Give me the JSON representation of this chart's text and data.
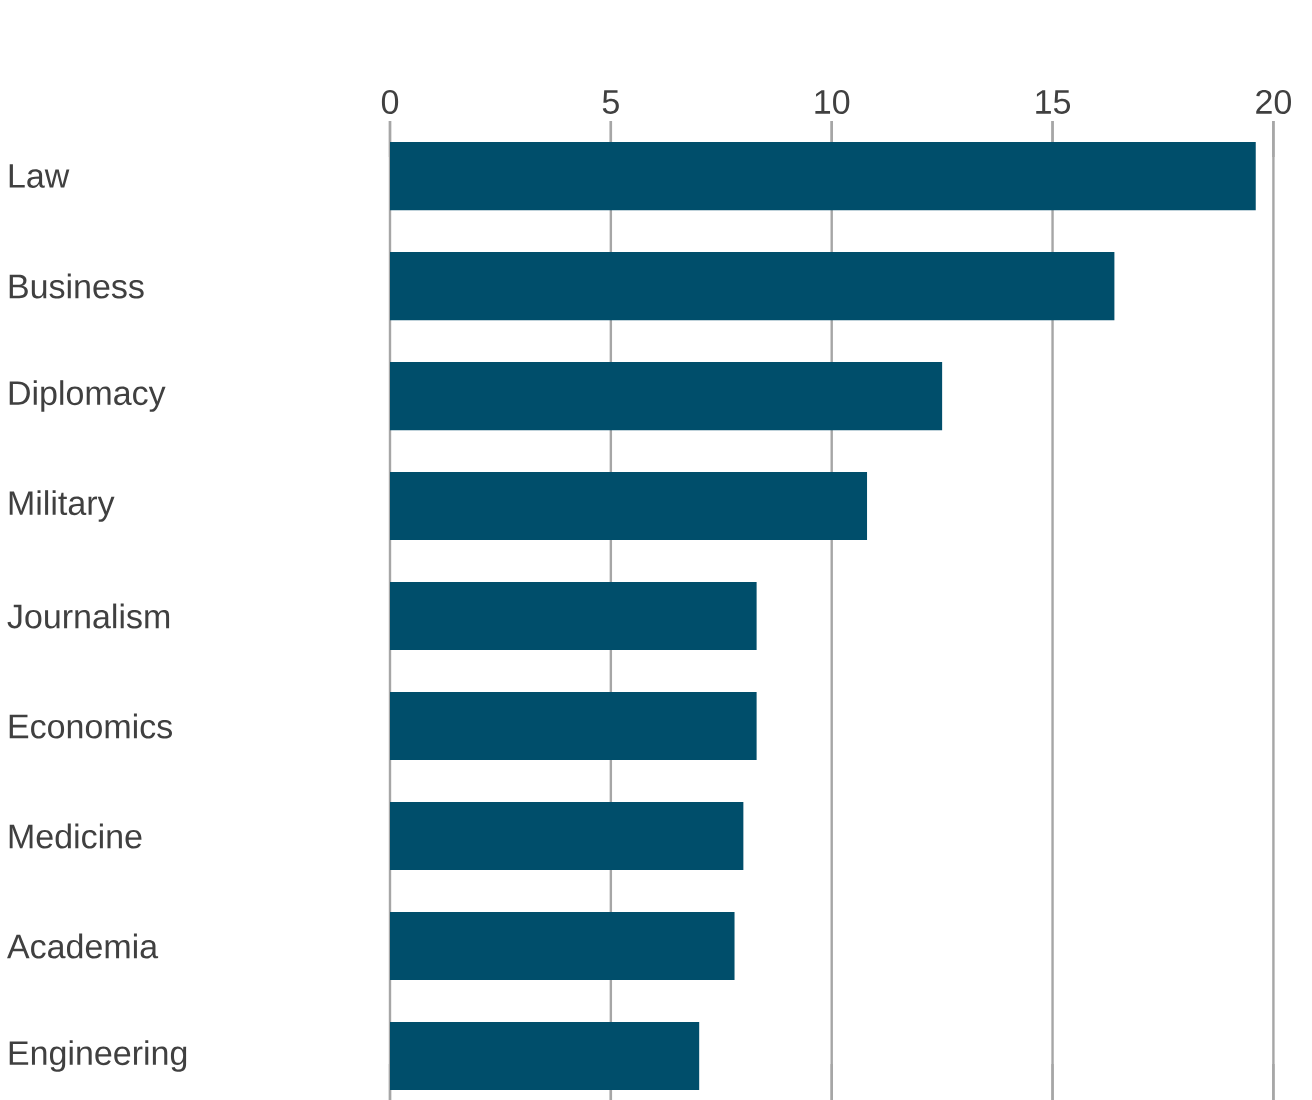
{
  "chart_data": {
    "type": "bar",
    "orientation": "horizontal",
    "categories": [
      "Law",
      "Business",
      "Diplomacy",
      "Military",
      "Journalism",
      "Economics",
      "Medicine",
      "Academia",
      "Engineering"
    ],
    "values": [
      19.6,
      16.4,
      12.5,
      10.8,
      8.3,
      8.3,
      8.0,
      7.8,
      7.0
    ],
    "color": "#004e6b",
    "xlim": [
      0,
      20
    ],
    "xticks": [
      0,
      5,
      10,
      15,
      20
    ],
    "grid": "x"
  }
}
